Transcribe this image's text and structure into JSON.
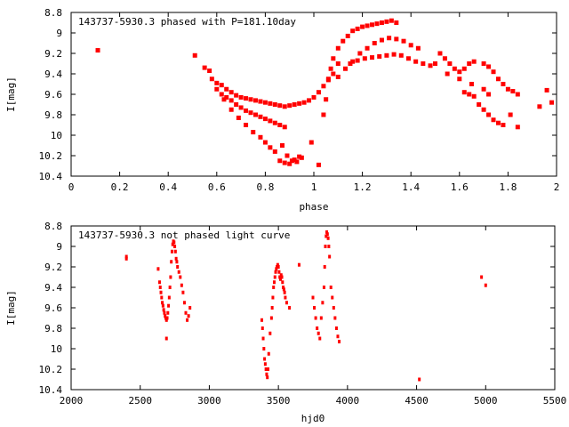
{
  "chart_data": [
    {
      "type": "scatter",
      "title": "143737-5930.3 phased with P=181.10day",
      "xlabel": "phase",
      "ylabel": "I[mag]",
      "xlim": [
        0,
        2
      ],
      "ylim": [
        8.8,
        10.4
      ],
      "y_inverted": true,
      "xticks": [
        "0",
        "0.2",
        "0.4",
        "0.6",
        "0.8",
        "1",
        "1.2",
        "1.4",
        "1.6",
        "1.8",
        "2"
      ],
      "yticks": [
        "8.8",
        "9",
        "9.2",
        "9.4",
        "9.6",
        "9.8",
        "10",
        "10.2",
        "10.4"
      ],
      "grid": false,
      "marker_color": "#ff0000",
      "series": [
        {
          "x": [
            0.11,
            0.51,
            0.55,
            0.57,
            0.58,
            0.6,
            0.62,
            0.64,
            0.66,
            0.68,
            0.7,
            0.72,
            0.74,
            0.76,
            0.78,
            0.8,
            0.82,
            0.84,
            0.86,
            0.88,
            0.9,
            0.92,
            0.94,
            0.96,
            0.98,
            1.0,
            1.02,
            1.04,
            1.06,
            1.08,
            1.1,
            0.62,
            0.64,
            0.66,
            0.68,
            0.7,
            0.72,
            0.74,
            0.76,
            0.78,
            0.8,
            0.82,
            0.84,
            0.86,
            0.88,
            0.6,
            0.63,
            0.66,
            0.69,
            0.72,
            0.75,
            0.78,
            0.8,
            0.82,
            0.84,
            0.86,
            0.88,
            0.9,
            0.92,
            0.94,
            0.87,
            0.89,
            0.91,
            0.93,
            0.95,
            0.99,
            1.02,
            1.04,
            1.05,
            1.06,
            1.07,
            1.08,
            1.1,
            1.12,
            1.14,
            1.16,
            1.18,
            1.2,
            1.22,
            1.24,
            1.26,
            1.28,
            1.3,
            1.32,
            1.34,
            1.1,
            1.13,
            1.16,
            1.19,
            1.22,
            1.25,
            1.28,
            1.31,
            1.34,
            1.37,
            1.4,
            1.43,
            1.15,
            1.18,
            1.21,
            1.24,
            1.27,
            1.3,
            1.33,
            1.36,
            1.39,
            1.42,
            1.45,
            1.48,
            1.5,
            1.52,
            1.54,
            1.56,
            1.58,
            1.6,
            1.62,
            1.64,
            1.66,
            1.7,
            1.72,
            1.74,
            1.76,
            1.78,
            1.8,
            1.82,
            1.84,
            1.55,
            1.6,
            1.65,
            1.7,
            1.72,
            1.62,
            1.64,
            1.66,
            1.68,
            1.7,
            1.72,
            1.74,
            1.76,
            1.78,
            1.81,
            1.84,
            1.93,
            1.96,
            1.98
          ],
          "y": [
            9.17,
            9.22,
            9.34,
            9.37,
            9.45,
            9.49,
            9.51,
            9.55,
            9.58,
            9.61,
            9.63,
            9.64,
            9.65,
            9.66,
            9.67,
            9.68,
            9.69,
            9.7,
            9.71,
            9.72,
            9.71,
            9.7,
            9.69,
            9.68,
            9.66,
            9.63,
            9.58,
            9.52,
            9.46,
            9.4,
            9.3,
            9.6,
            9.63,
            9.66,
            9.7,
            9.73,
            9.76,
            9.78,
            9.8,
            9.82,
            9.84,
            9.86,
            9.88,
            9.9,
            9.92,
            9.55,
            9.65,
            9.75,
            9.83,
            9.9,
            9.97,
            10.02,
            10.07,
            10.12,
            10.16,
            10.25,
            10.27,
            10.28,
            10.24,
            10.21,
            10.1,
            10.2,
            10.25,
            10.26,
            10.22,
            10.07,
            10.29,
            9.8,
            9.65,
            9.45,
            9.35,
            9.25,
            9.15,
            9.08,
            9.03,
            8.98,
            8.96,
            8.94,
            8.93,
            8.92,
            8.91,
            8.9,
            8.89,
            8.88,
            8.9,
            9.43,
            9.35,
            9.28,
            9.2,
            9.15,
            9.1,
            9.07,
            9.05,
            9.06,
            9.08,
            9.12,
            9.15,
            9.3,
            9.27,
            9.25,
            9.24,
            9.23,
            9.22,
            9.21,
            9.22,
            9.25,
            9.28,
            9.3,
            9.32,
            9.3,
            9.2,
            9.25,
            9.3,
            9.35,
            9.38,
            9.35,
            9.3,
            9.28,
            9.3,
            9.33,
            9.38,
            9.45,
            9.5,
            9.55,
            9.57,
            9.6,
            9.4,
            9.45,
            9.5,
            9.55,
            9.6,
            9.58,
            9.6,
            9.62,
            9.7,
            9.75,
            9.8,
            9.85,
            9.88,
            9.9,
            9.8,
            9.92,
            9.72,
            9.56,
            9.68
          ]
        }
      ]
    },
    {
      "type": "scatter",
      "title": "143737-5930.3 not phased light curve",
      "xlabel": "hjd0",
      "ylabel": "I[mag]",
      "xlim": [
        2000,
        5500
      ],
      "ylim": [
        8.8,
        10.4
      ],
      "y_inverted": true,
      "xticks": [
        "2000",
        "2500",
        "3000",
        "3500",
        "4000",
        "4500",
        "5000",
        "5500"
      ],
      "yticks": [
        "8.8",
        "9",
        "9.2",
        "9.4",
        "9.6",
        "9.8",
        "10",
        "10.2",
        "10.4"
      ],
      "grid": false,
      "marker_color": "#ff0000",
      "series": [
        {
          "x": [
            2400,
            2400,
            2630,
            2640,
            2645,
            2650,
            2655,
            2660,
            2665,
            2670,
            2675,
            2680,
            2685,
            2690,
            2695,
            2700,
            2705,
            2710,
            2715,
            2720,
            2725,
            2730,
            2735,
            2740,
            2745,
            2750,
            2755,
            2760,
            2765,
            2770,
            2780,
            2790,
            2800,
            2810,
            2820,
            2830,
            2840,
            2850,
            2860,
            2690,
            3380,
            3385,
            3390,
            3395,
            3400,
            3405,
            3410,
            3415,
            3420,
            3425,
            3430,
            3440,
            3450,
            3455,
            3460,
            3465,
            3470,
            3475,
            3480,
            3485,
            3490,
            3495,
            3500,
            3505,
            3510,
            3515,
            3520,
            3525,
            3530,
            3535,
            3540,
            3545,
            3550,
            3560,
            3580,
            3650,
            3750,
            3760,
            3770,
            3780,
            3790,
            3800,
            3810,
            3820,
            3830,
            3835,
            3840,
            3845,
            3850,
            3855,
            3860,
            3865,
            3870,
            3880,
            3890,
            3900,
            3910,
            3920,
            3930,
            3940,
            4520,
            4970,
            5000
          ],
          "y": [
            9.1,
            9.12,
            9.22,
            9.35,
            9.4,
            9.45,
            9.5,
            9.55,
            9.58,
            9.62,
            9.65,
            9.68,
            9.7,
            9.72,
            9.7,
            9.65,
            9.58,
            9.5,
            9.4,
            9.3,
            9.15,
            9.05,
            8.98,
            8.95,
            8.96,
            9.0,
            9.05,
            9.12,
            9.15,
            9.2,
            9.25,
            9.3,
            9.38,
            9.45,
            9.55,
            9.65,
            9.72,
            9.68,
            9.6,
            9.9,
            9.72,
            9.8,
            9.9,
            10.0,
            10.1,
            10.15,
            10.2,
            10.25,
            10.28,
            10.2,
            10.05,
            9.85,
            9.7,
            9.6,
            9.5,
            9.4,
            9.35,
            9.3,
            9.25,
            9.22,
            9.2,
            9.18,
            9.2,
            9.25,
            9.3,
            9.32,
            9.28,
            9.3,
            9.35,
            9.4,
            9.42,
            9.45,
            9.5,
            9.55,
            9.6,
            9.18,
            9.5,
            9.6,
            9.7,
            9.8,
            9.85,
            9.9,
            9.7,
            9.55,
            9.4,
            9.2,
            9.0,
            8.9,
            8.86,
            8.88,
            8.92,
            9.0,
            9.1,
            9.4,
            9.5,
            9.6,
            9.7,
            9.8,
            9.88,
            9.93,
            10.3,
            9.3,
            9.38
          ]
        }
      ]
    }
  ]
}
